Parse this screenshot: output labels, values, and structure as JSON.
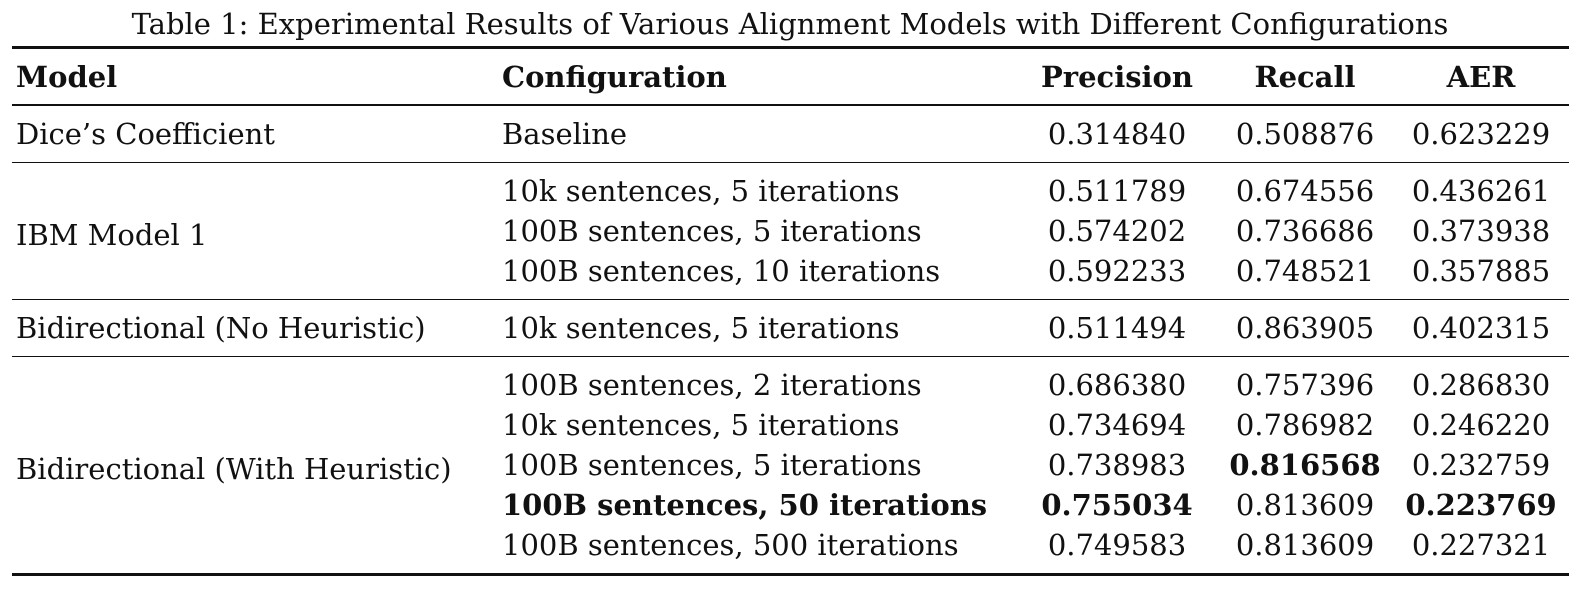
{
  "caption": "Table 1: Experimental Results of Various Alignment Models with Different Configurations",
  "headers": {
    "model": "Model",
    "configuration": "Configuration",
    "precision": "Precision",
    "recall": "Recall",
    "aer": "AER"
  },
  "groups": [
    {
      "model": "Dice’s Coefficient",
      "rows": [
        {
          "configuration": "Baseline",
          "precision": "0.314840",
          "recall": "0.508876",
          "aer": "0.623229"
        }
      ]
    },
    {
      "model": "IBM Model 1",
      "rows": [
        {
          "configuration": "10k sentences, 5 iterations",
          "precision": "0.511789",
          "recall": "0.674556",
          "aer": "0.436261"
        },
        {
          "configuration": "100B sentences, 5 iterations",
          "precision": "0.574202",
          "recall": "0.736686",
          "aer": "0.373938"
        },
        {
          "configuration": "100B sentences, 10 iterations",
          "precision": "0.592233",
          "recall": "0.748521",
          "aer": "0.357885"
        }
      ]
    },
    {
      "model": "Bidirectional (No Heuristic)",
      "rows": [
        {
          "configuration": "10k sentences, 5 iterations",
          "precision": "0.511494",
          "recall": "0.863905",
          "aer": "0.402315"
        }
      ]
    },
    {
      "model": "Bidirectional (With Heuristic)",
      "rows": [
        {
          "configuration": "100B sentences, 2 iterations",
          "precision": "0.686380",
          "recall": "0.757396",
          "aer": "0.286830"
        },
        {
          "configuration": "10k sentences, 5 iterations",
          "precision": "0.734694",
          "recall": "0.786982",
          "aer": "0.246220"
        },
        {
          "configuration": "100B sentences, 5 iterations",
          "precision": "0.738983",
          "recall": "0.816568",
          "aer": "0.232759"
        },
        {
          "configuration": "100B sentences, 50 iterations",
          "precision": "0.755034",
          "recall": "0.813609",
          "aer": "0.223769"
        },
        {
          "configuration": "100B sentences, 500 iterations",
          "precision": "0.749583",
          "recall": "0.813609",
          "aer": "0.227321"
        }
      ]
    }
  ]
}
